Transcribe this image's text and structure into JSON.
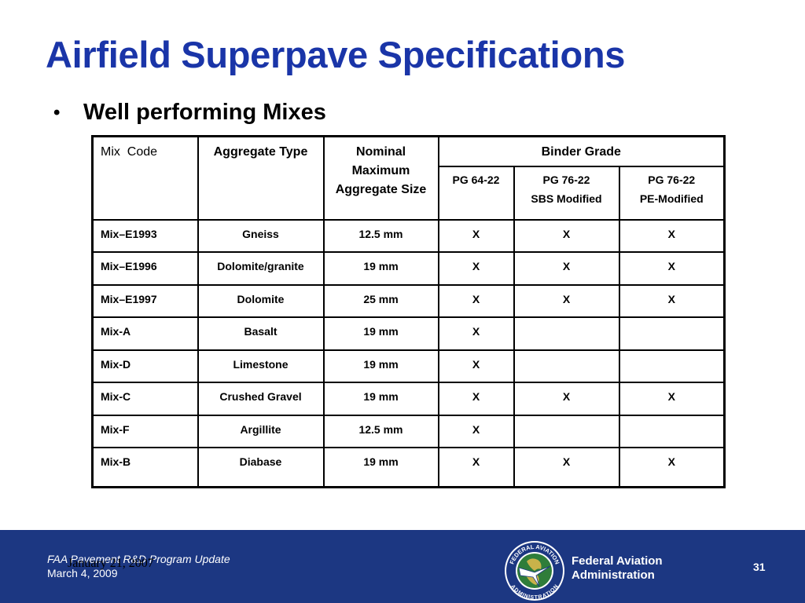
{
  "slide": {
    "title": "Airfield Superpave Specifications",
    "bullet": "Well performing Mixes"
  },
  "table": {
    "headers": {
      "mix_code": "Mix  Code",
      "aggregate_type": "Aggregate Type",
      "nominal_size": "Nominal Maximum Aggregate Size",
      "binder_grade": "Binder Grade",
      "binder_sub": [
        {
          "line1": "PG 64-22",
          "line2": ""
        },
        {
          "line1": "PG 76-22",
          "line2": "SBS Modified"
        },
        {
          "line1": "PG 76-22",
          "line2": "PE-Modified"
        }
      ]
    },
    "rows": [
      {
        "code": "Mix–E1993",
        "aggregate": "Gneiss",
        "size": "12.5 mm",
        "pg6422": "X",
        "sbs": "X",
        "pe": "X"
      },
      {
        "code": "Mix–E1996",
        "aggregate": "Dolomite/granite",
        "size": "19 mm",
        "pg6422": "X",
        "sbs": "X",
        "pe": "X"
      },
      {
        "code": "Mix–E1997",
        "aggregate": "Dolomite",
        "size": "25 mm",
        "pg6422": "X",
        "sbs": "X",
        "pe": "X"
      },
      {
        "code": "Mix-A",
        "aggregate": "Basalt",
        "size": "19 mm",
        "pg6422": "X",
        "sbs": "",
        "pe": ""
      },
      {
        "code": "Mix-D",
        "aggregate": "Limestone",
        "size": "19 mm",
        "pg6422": "X",
        "sbs": "",
        "pe": ""
      },
      {
        "code": "Mix-C",
        "aggregate": "Crushed Gravel",
        "size": "19 mm",
        "pg6422": "X",
        "sbs": "X",
        "pe": "X"
      },
      {
        "code": "Mix-F",
        "aggregate": "Argillite",
        "size": "12.5 mm",
        "pg6422": "X",
        "sbs": "",
        "pe": ""
      },
      {
        "code": "Mix-B",
        "aggregate": "Diabase",
        "size": "19 mm",
        "pg6422": "X",
        "sbs": "X",
        "pe": "X"
      }
    ]
  },
  "footer": {
    "program": "FAA Pavement R&D Program Update",
    "date": "March 4, 2009",
    "overlay_date": "January 21, 2007",
    "agency_line1": "Federal Aviation",
    "agency_line2": "Administration",
    "page_number": "31",
    "seal_icon": "faa-seal-icon",
    "seal_text_top": "FEDERAL AVIATION",
    "seal_text_bottom": "ADMINISTRATION",
    "background_color": "#1c3782"
  },
  "colors": {
    "title": "#1a35a8",
    "footer_bg": "#1c3782"
  }
}
